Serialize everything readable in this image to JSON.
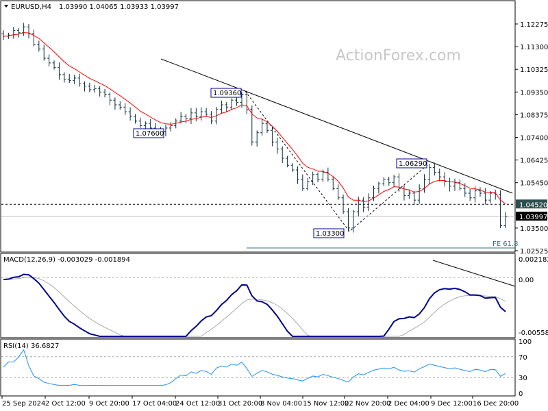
{
  "header": {
    "symbol": "EURUSD,H4",
    "ohlc": "1.03990 1.04065 1.03933 1.03997"
  },
  "watermark": "ActionForex.com",
  "chart_data": {
    "type": "ohlc-bar",
    "price_axis": {
      "ticks": [
        "1.12275",
        "1.11300",
        "1.10325",
        "1.09350",
        "1.08375",
        "1.07400",
        "1.06425",
        "1.05450",
        "1.03500",
        "1.02525"
      ],
      "range": [
        1.02525,
        1.12275
      ]
    },
    "x_ticks": [
      "25 Sep 2024",
      "2 Oct 12:00",
      "9 Oct 20:00",
      "17 Oct 04:00",
      "24 Oct 12:00",
      "31 Oct 20:00",
      "8 Nov 04:00",
      "15 Nov 12:00",
      "22 Nov 20:00",
      "2 Dec 04:00",
      "9 Dec 12:00",
      "16 Dec 20:00"
    ],
    "close": [
      1.1175,
      1.118,
      1.12,
      1.119,
      1.1215,
      1.1185,
      1.114,
      1.112,
      1.108,
      1.106,
      1.104,
      1.101,
      1.099,
      1.0985,
      1.0995,
      1.097,
      1.096,
      1.0945,
      1.095,
      1.0935,
      1.0925,
      1.09,
      1.088,
      1.087,
      1.085,
      1.083,
      1.081,
      1.079,
      1.08,
      1.078,
      1.077,
      1.0765,
      1.078,
      1.079,
      1.081,
      1.083,
      1.082,
      1.0845,
      1.083,
      1.085,
      1.084,
      1.081,
      1.086,
      1.088,
      1.087,
      1.09,
      1.089,
      1.0925,
      1.086,
      1.072,
      1.076,
      1.08,
      1.077,
      1.072,
      1.069,
      1.065,
      1.062,
      1.06,
      1.056,
      1.052,
      1.055,
      1.058,
      1.056,
      1.059,
      1.056,
      1.052,
      1.048,
      1.042,
      1.035,
      1.042,
      1.047,
      1.044,
      1.048,
      1.052,
      1.054,
      1.056,
      1.0545,
      1.057,
      1.052,
      1.049,
      1.05,
      1.047,
      1.052,
      1.056,
      1.061,
      1.059,
      1.057,
      1.055,
      1.053,
      1.0545,
      1.052,
      1.05,
      1.048,
      1.051,
      1.05,
      1.047,
      1.05,
      1.0495,
      1.036,
      1.04
    ],
    "annotations": [
      {
        "label": "1.07600",
        "price": 1.076
      },
      {
        "label": "1.09360",
        "price": 1.0936
      },
      {
        "label": "1.03300",
        "price": 1.033
      },
      {
        "label": "1.06290",
        "price": 1.0629
      }
    ],
    "levels": [
      {
        "label": "1.04520",
        "price": 1.0452,
        "style": "dashed",
        "color": "#2f4f4f"
      },
      {
        "label": "1.03997",
        "price": 1.03997,
        "style": "current",
        "color": "#000000"
      },
      {
        "label": "FE 61.8",
        "price": 1.026,
        "color": "#2e6e7e"
      }
    ],
    "moving_average_color": "#ff0000",
    "bar_color": "#0b2b3b",
    "macd": {
      "title": "MACD(12,26,9) -0.003029 -0.001894",
      "ticks": [
        "0.002182",
        "0.00",
        "-0.005584"
      ],
      "range": [
        -0.005584,
        0.002182
      ],
      "line_color": "#00008b",
      "signal_color": "#a9a9a9"
    },
    "rsi": {
      "title": "RSI(14) 36.6827",
      "ticks": [
        "100",
        "70",
        "30",
        "0"
      ],
      "range": [
        0,
        100
      ],
      "color": "#1e90ff"
    }
  }
}
